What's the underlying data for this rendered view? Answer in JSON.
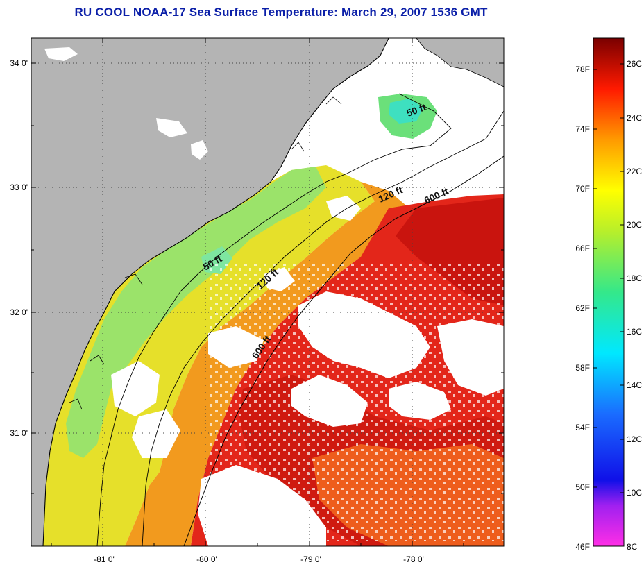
{
  "title": "RU COOL  NOAA-17  Sea Surface Temperature:  March 29, 2007 1536 GMT",
  "map": {
    "lat_labels": [
      "34 0'",
      "33 0'",
      "32 0'",
      "31 0'"
    ],
    "lon_labels": [
      "-81 0'",
      "-80 0'",
      "-79 0'",
      "-78 0'"
    ],
    "contour_labels": [
      "50 ft",
      "120 ft",
      "600 ft",
      "50 ft",
      "120 ft",
      "600 ft"
    ]
  },
  "colorbar": {
    "fahrenheit_ticks": [
      "78F",
      "74F",
      "70F",
      "66F",
      "62F",
      "58F",
      "54F",
      "50F",
      "46F"
    ],
    "celsius_ticks": [
      "26C",
      "24C",
      "22C",
      "20C",
      "18C",
      "16C",
      "14C",
      "12C",
      "10C",
      "8C"
    ]
  },
  "colors": {
    "land": "#b4b4b4",
    "no_data": "#ffffff",
    "title": "#0b1fa8"
  }
}
